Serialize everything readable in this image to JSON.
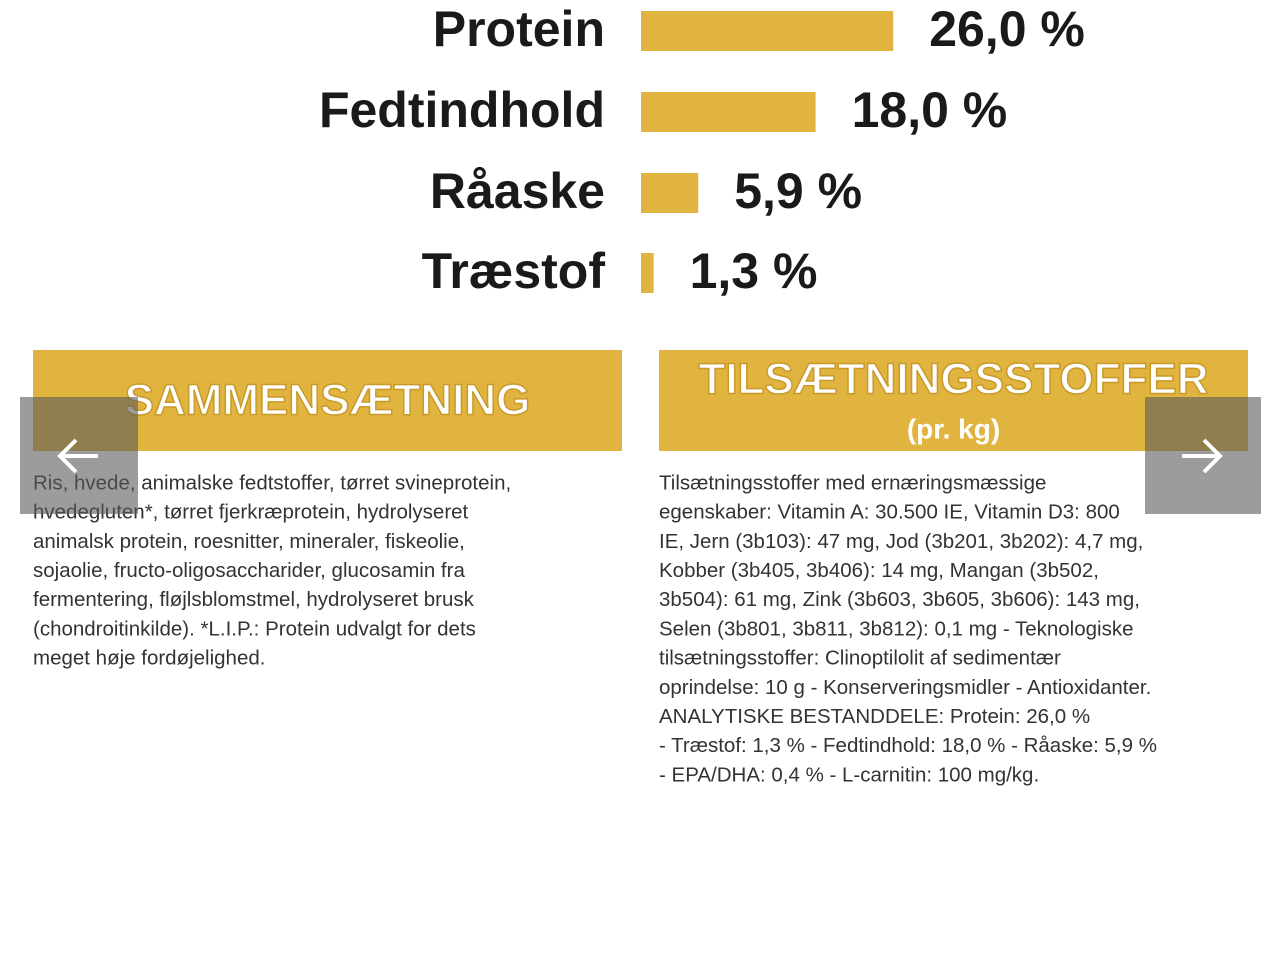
{
  "chart_data": {
    "type": "bar",
    "categories": [
      "Protein",
      "Fedtindhold",
      "Råaske",
      "Træstof"
    ],
    "values": [
      26.0,
      18.0,
      5.9,
      1.3
    ],
    "value_labels": [
      "26,0 %",
      "18,0 %",
      "5,9 %",
      "1,3 %"
    ],
    "color": "#e0b43e"
  },
  "panels": [
    {
      "title": "SAMMENSÆTNING",
      "lines": [
        "Ris, hvede, animalske fedtstoffer, tørret svineprotein,",
        "hvedegluten*, tørret fjerkræprotein, hydrolyseret",
        "animalsk protein, roesnitter, mineraler, fiskeolie,",
        "sojaolie, fructo-oligosaccharider, glucosamin fra",
        "fermentering, fløjlsblomstmel, hydrolyseret brusk",
        "(chondroitinkilde). *L.I.P.: Protein udvalgt for dets",
        "meget høje fordøjelighed."
      ]
    },
    {
      "title": "TILSÆTNINGSSTOFFER",
      "subtitle": "(pr. kg)",
      "lines": [
        "Tilsætningsstoffer med ernæringsmæssige",
        "egenskaber: Vitamin A: 30.500 IE, Vitamin D3: 800",
        "IE, Jern (3b103): 47 mg, Jod (3b201, 3b202): 4,7 mg,",
        "Kobber (3b405, 3b406): 14 mg, Mangan (3b502,",
        "3b504): 61 mg, Zink (3b603, 3b605, 3b606): 143 mg,",
        "Selen (3b801, 3b811, 3b812): 0,1 mg - Teknologiske",
        "tilsætningsstoffer: Clinoptilolit af sedimentær",
        "oprindelse: 10 g - Konserveringsmidler - Antioxidanter.",
        "ANALYTISKE BESTANDDELE: Protein: 26,0 %",
        "- Træstof: 1,3 % - Fedtindhold: 18,0 % - Råaske: 5,9 %",
        "- EPA/DHA: 0,4 % - L-carnitin: 100 mg/kg."
      ]
    }
  ]
}
